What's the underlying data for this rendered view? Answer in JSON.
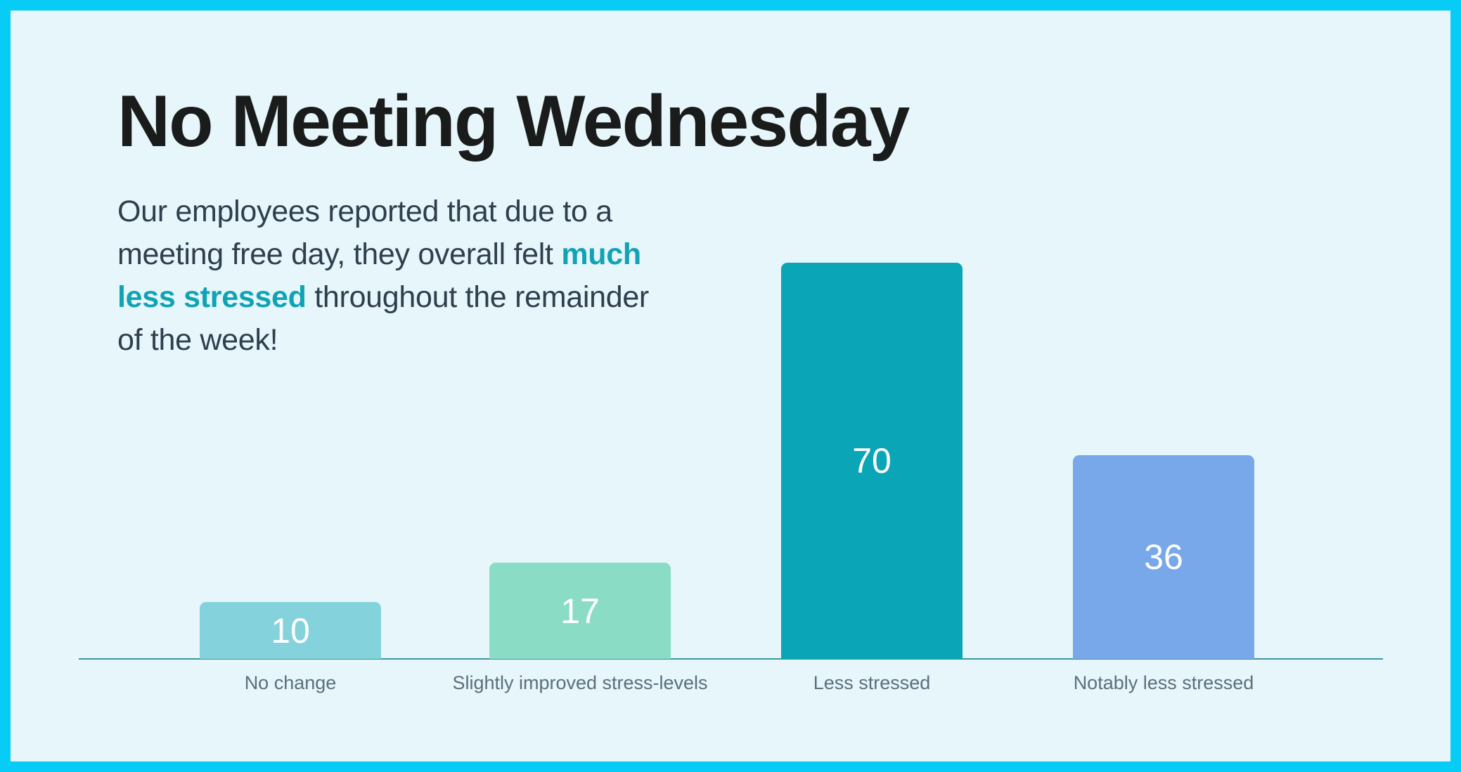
{
  "slide": {
    "title": "No Meeting Wednesday",
    "body": {
      "before": "Our employees reported that due to a meeting free day, they overall felt ",
      "highlight": "much less stressed",
      "after": " throughout the remainder of the week!"
    }
  },
  "colors": {
    "frame_border": "#07ccf5",
    "background": "#e6f6fa",
    "title": "#1a1c1c",
    "body": "#2e3f4e",
    "highlight": "#10a3b5",
    "axis": "#3c96a1",
    "label": "#5b6f7c"
  },
  "chart_data": {
    "type": "bar",
    "title": "",
    "xlabel": "",
    "ylabel": "",
    "categories": [
      "No change",
      "Slightly improved stress-levels",
      "Less stressed",
      "Notably less stressed"
    ],
    "values": [
      10,
      17,
      70,
      36
    ],
    "bar_colors": [
      "#84d3dc",
      "#8adcc5",
      "#0ba5b8",
      "#78a8ea"
    ],
    "data_labels": [
      "10",
      "17",
      "70",
      "36"
    ],
    "ylim": [
      0,
      70
    ],
    "grid": false,
    "legend": "none",
    "value_axis_visible": false
  }
}
